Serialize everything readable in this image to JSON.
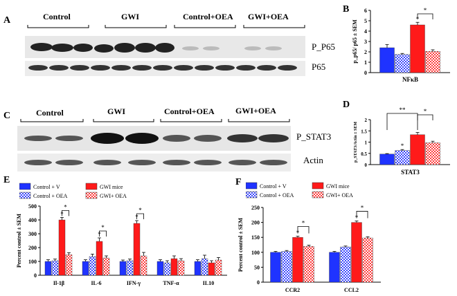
{
  "panels": {
    "A": "A",
    "B": "B",
    "C": "C",
    "D": "D",
    "E": "E",
    "F": "F"
  },
  "blot_a": {
    "groups": [
      "Control",
      "GWI",
      "Control+OEA",
      "GWI+OEA"
    ],
    "bands": [
      "P_P65",
      "P65"
    ]
  },
  "blot_c": {
    "groups": [
      "Control",
      "GWI",
      "Control+OEA",
      "GWI+OEA"
    ],
    "bands": [
      "P_STAT3",
      "Actin"
    ]
  },
  "colors": {
    "control_v": "#1f33ff",
    "control_oea": "#3a47ff",
    "gwi": "#ff1a1a",
    "gwi_oea": "#ff3b3b"
  },
  "legend": [
    "Control + V",
    "Control + OEA",
    "GWI mice",
    "GWI+ OEA"
  ],
  "chart_data": [
    {
      "id": "B",
      "type": "bar",
      "categories": [
        "NFκB"
      ],
      "series": [
        {
          "values": [
            2.4
          ],
          "err": [
            0.3
          ]
        },
        {
          "values": [
            1.75
          ],
          "err": [
            0.1
          ]
        },
        {
          "values": [
            4.6
          ],
          "err": [
            0.25
          ]
        },
        {
          "values": [
            2.05
          ],
          "err": [
            0.15
          ]
        }
      ],
      "ylabel": "p_p65/ p65 ± SEM",
      "ylim": [
        0,
        6
      ],
      "yticks": [
        0,
        1,
        2,
        3,
        4,
        5,
        6
      ],
      "annotations": [
        "*",
        "*"
      ]
    },
    {
      "id": "D",
      "type": "bar",
      "categories": [
        "STAT3"
      ],
      "series": [
        {
          "values": [
            0.47
          ],
          "err": [
            0.02
          ]
        },
        {
          "values": [
            0.63
          ],
          "err": [
            0.04
          ]
        },
        {
          "values": [
            1.33
          ],
          "err": [
            0.1
          ]
        },
        {
          "values": [
            0.97
          ],
          "err": [
            0.07
          ]
        }
      ],
      "ylabel": "p_STAT3/Actin ± SEM",
      "ylim": [
        0,
        2
      ],
      "yticks": [
        0,
        0.5,
        1,
        1.5,
        2
      ],
      "ytick_labels": [
        "0",
        "0.5",
        "1",
        "1.5",
        "2"
      ],
      "annotations": [
        "*",
        "**",
        "*"
      ]
    },
    {
      "id": "E",
      "type": "bar",
      "categories": [
        "Il-1β",
        "IL-6",
        "IFN-γ",
        "TNF-α",
        "IL10"
      ],
      "series": [
        {
          "name": "Control + V",
          "values": [
            100,
            100,
            100,
            100,
            100
          ],
          "err": [
            12,
            12,
            10,
            12,
            12
          ]
        },
        {
          "name": "Control + OEA",
          "values": [
            105,
            135,
            105,
            90,
            120
          ],
          "err": [
            12,
            18,
            12,
            15,
            25
          ]
        },
        {
          "name": "GWI mice",
          "values": [
            400,
            245,
            375,
            120,
            90
          ],
          "err": [
            18,
            25,
            20,
            20,
            15
          ]
        },
        {
          "name": "GWI+ OEA",
          "values": [
            148,
            125,
            140,
            105,
            110
          ],
          "err": [
            15,
            15,
            25,
            15,
            18
          ]
        }
      ],
      "ylabel": "Percent control ± SEM",
      "ylim": [
        0,
        500
      ],
      "yticks": [
        0,
        100,
        200,
        300,
        400,
        500
      ],
      "annotations": [
        "*",
        "*",
        "*",
        "*",
        "*",
        "*"
      ]
    },
    {
      "id": "F",
      "type": "bar",
      "categories": [
        "CCR2",
        "CCL2"
      ],
      "series": [
        {
          "name": "Control + V",
          "values": [
            100,
            100
          ],
          "err": [
            3,
            3
          ]
        },
        {
          "name": "Control + OEA",
          "values": [
            103,
            118
          ],
          "err": [
            3,
            3
          ]
        },
        {
          "name": "GWI mice",
          "values": [
            150,
            200
          ],
          "err": [
            4,
            5
          ]
        },
        {
          "name": "GWI+ OEA",
          "values": [
            120,
            148
          ],
          "err": [
            4,
            4
          ]
        }
      ],
      "ylabel": "Percent control ± SEM",
      "ylim": [
        0,
        250
      ],
      "yticks": [
        0,
        50,
        100,
        150,
        200,
        250
      ],
      "annotations": [
        "*",
        "*",
        "*",
        "*"
      ]
    }
  ]
}
